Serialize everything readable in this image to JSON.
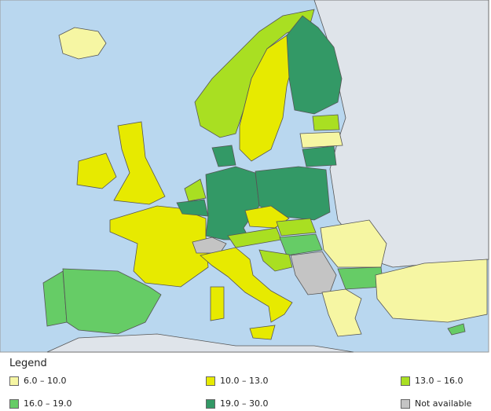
{
  "legend": {
    "title": "Legend",
    "items": [
      {
        "label": "6.0 – 10.0",
        "color": "#f6f6a3"
      },
      {
        "label": "10.0 – 13.0",
        "color": "#e7ea00"
      },
      {
        "label": "13.0 – 16.0",
        "color": "#a9df22"
      },
      {
        "label": "16.0 – 19.0",
        "color": "#66cc66"
      },
      {
        "label": "19.0 – 30.0",
        "color": "#339966"
      },
      {
        "label": "Not available",
        "color": "#c4c4c4"
      }
    ]
  }
}
